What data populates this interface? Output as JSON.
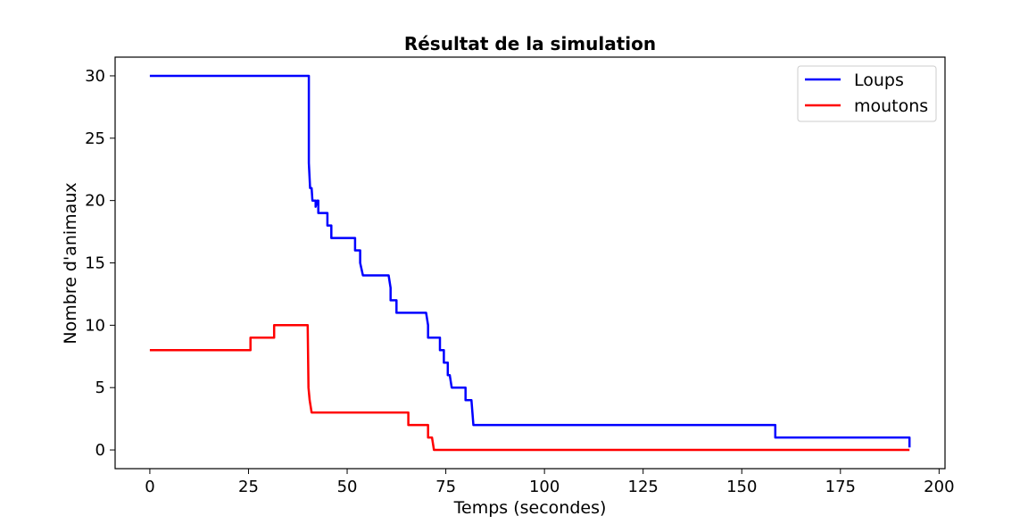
{
  "chart_data": {
    "type": "line",
    "title": "Résultat de la simulation",
    "xlabel": "Temps (secondes)",
    "ylabel": "Nombre d'animaux",
    "xlim": [
      -8.8,
      201.5
    ],
    "ylim": [
      -1.5,
      31.5
    ],
    "xticks": [
      0,
      25,
      50,
      75,
      100,
      125,
      150,
      175,
      200
    ],
    "yticks": [
      0,
      5,
      10,
      15,
      20,
      25,
      30
    ],
    "grid": false,
    "legend_position": "top-right",
    "series": [
      {
        "name": "Loups",
        "color": "#0000ff",
        "points": [
          [
            0,
            30
          ],
          [
            40.3,
            30
          ],
          [
            40.3,
            23
          ],
          [
            40.6,
            21
          ],
          [
            41,
            21
          ],
          [
            41.2,
            20
          ],
          [
            42,
            20
          ],
          [
            42,
            19.5
          ],
          [
            42.4,
            20
          ],
          [
            42.7,
            20
          ],
          [
            42.7,
            19
          ],
          [
            45,
            19
          ],
          [
            45,
            18
          ],
          [
            46,
            18
          ],
          [
            46,
            17
          ],
          [
            52,
            17
          ],
          [
            52,
            16
          ],
          [
            53.3,
            16
          ],
          [
            53.3,
            15
          ],
          [
            54,
            14
          ],
          [
            60.5,
            14
          ],
          [
            61,
            13
          ],
          [
            61,
            12
          ],
          [
            62.5,
            12
          ],
          [
            62.5,
            11
          ],
          [
            70,
            11
          ],
          [
            70.5,
            10
          ],
          [
            70.5,
            9
          ],
          [
            73.5,
            9
          ],
          [
            73.5,
            8
          ],
          [
            74.5,
            8
          ],
          [
            74.5,
            7
          ],
          [
            75.5,
            7
          ],
          [
            75.5,
            6
          ],
          [
            76,
            6
          ],
          [
            76.5,
            5
          ],
          [
            80,
            5
          ],
          [
            80,
            4
          ],
          [
            81.5,
            4
          ],
          [
            82,
            2
          ],
          [
            158.5,
            2
          ],
          [
            158.5,
            1
          ],
          [
            192.5,
            1
          ],
          [
            192.5,
            0.2
          ]
        ]
      },
      {
        "name": "moutons",
        "color": "#ff0000",
        "points": [
          [
            0,
            8
          ],
          [
            25.5,
            8
          ],
          [
            25.5,
            9
          ],
          [
            31.5,
            9
          ],
          [
            31.5,
            10
          ],
          [
            40,
            10
          ],
          [
            40.2,
            5
          ],
          [
            40.5,
            4
          ],
          [
            41,
            3
          ],
          [
            65.5,
            3
          ],
          [
            65.5,
            2
          ],
          [
            70.5,
            2
          ],
          [
            70.5,
            1
          ],
          [
            71.5,
            1
          ],
          [
            72,
            0
          ],
          [
            192.5,
            0
          ]
        ]
      }
    ]
  }
}
